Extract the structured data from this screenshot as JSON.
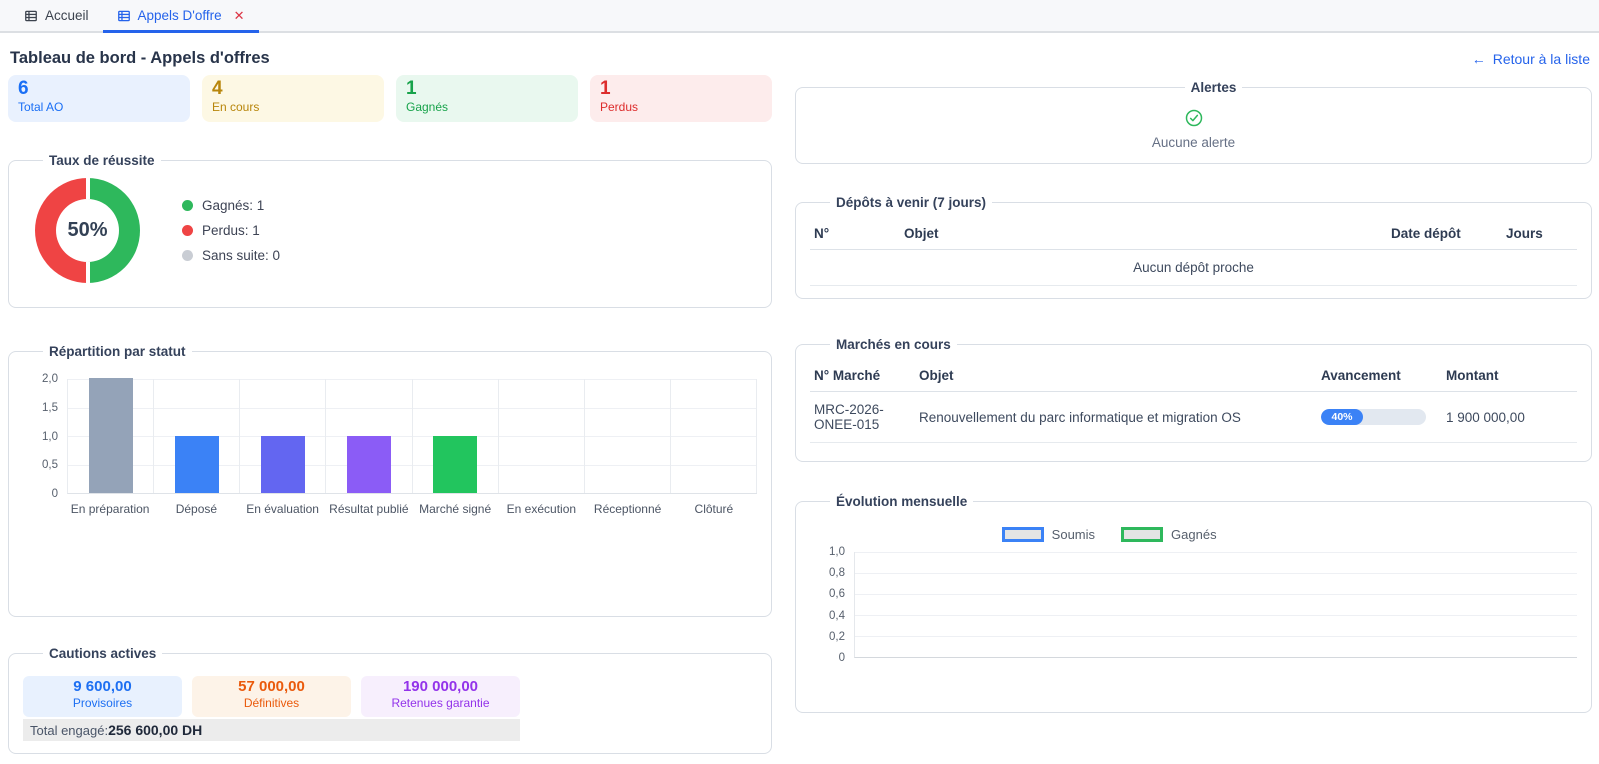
{
  "tabs": {
    "items": [
      {
        "label": "Accueil"
      },
      {
        "label": "Appels D'offre",
        "close": "✕"
      }
    ]
  },
  "header": {
    "title": "Tableau de bord - Appels d'offres",
    "back_arrow": "←",
    "back_label": "Retour à la liste"
  },
  "stat_cards": [
    {
      "value": "6",
      "label": "Total AO",
      "color": "#1a6ff5",
      "bg": "#e9f1fe"
    },
    {
      "value": "4",
      "label": "En cours",
      "color": "#b8860b",
      "bg": "#fdf8e4"
    },
    {
      "value": "1",
      "label": "Gagnés",
      "color": "#18a34b",
      "bg": "#e9f8ef"
    },
    {
      "value": "1",
      "label": "Perdus",
      "color": "#dd2c2c",
      "bg": "#fdecec"
    }
  ],
  "chart_data": [
    {
      "id": "taux_reussite",
      "type": "pie",
      "title": "Taux de réussite",
      "center_label": "50%",
      "legend_position": "right",
      "slices": [
        {
          "label": "Gagnés",
          "value": 1,
          "color": "#2eb85c"
        },
        {
          "label": "Perdus",
          "value": 1,
          "color": "#ef4444"
        },
        {
          "label": "Sans suite",
          "value": 0,
          "color": "#c9cdd4"
        }
      ]
    },
    {
      "id": "repartition_statut",
      "type": "bar",
      "title": "Répartition par statut",
      "categories": [
        "En préparation",
        "Déposé",
        "En évaluation",
        "Résultat publié",
        "Marché signé",
        "En exécution",
        "Réceptionné",
        "Clôturé"
      ],
      "values": [
        2,
        1,
        1,
        1,
        1,
        0,
        0,
        0
      ],
      "colors": [
        "#94a3b8",
        "#3b82f6",
        "#6366f1",
        "#8b5cf6",
        "#22c55e",
        "#94a3b8",
        "#94a3b8",
        "#94a3b8"
      ],
      "ylim": [
        0,
        2
      ],
      "yticks": [
        "2,0",
        "1,5",
        "1,0",
        "0,5",
        "0"
      ],
      "grid": true,
      "legend_position": "none"
    },
    {
      "id": "evolution_mensuelle",
      "type": "bar",
      "title": "Évolution mensuelle",
      "categories": [],
      "series": [
        {
          "name": "Soumis",
          "color": "#3b82f6",
          "values": []
        },
        {
          "name": "Gagnés",
          "color": "#2eb85c",
          "values": []
        }
      ],
      "ylim": [
        0,
        1
      ],
      "yticks": [
        "1,0",
        "0,8",
        "0,6",
        "0,4",
        "0,2",
        "0"
      ],
      "grid": true,
      "legend_position": "top"
    }
  ],
  "alerts": {
    "title": "Alertes",
    "icon": "check-circle-icon",
    "empty_text": "Aucune alerte"
  },
  "deposits": {
    "title": "Dépôts à venir (7 jours)",
    "columns": [
      "N°",
      "Objet",
      "Date dépôt",
      "Jours"
    ],
    "empty_text": "Aucun dépôt proche",
    "rows": []
  },
  "markets": {
    "title": "Marchés en cours",
    "columns": [
      "N° Marché",
      "Objet",
      "Avancement",
      "Montant"
    ],
    "rows": [
      {
        "number": "MRC-2026-ONEE-015",
        "objet": "Renouvellement du parc informatique et migration OS",
        "progress_percent": 40,
        "progress_label": "40%",
        "montant": "1 900 000,00"
      }
    ]
  },
  "cautions": {
    "title": "Cautions actives",
    "items": [
      {
        "value": "9 600,00",
        "label": "Provisoires",
        "color": "#1d6ff2",
        "bg": "#e8f1fe"
      },
      {
        "value": "57 000,00",
        "label": "Définitives",
        "color": "#ea5a0c",
        "bg": "#fdf3e8"
      },
      {
        "value": "190 000,00",
        "label": "Retenues garantie",
        "color": "#9333ea",
        "bg": "#f7effd"
      }
    ],
    "total_label": "Total engagé:",
    "total_value": "256 600,00 DH"
  }
}
